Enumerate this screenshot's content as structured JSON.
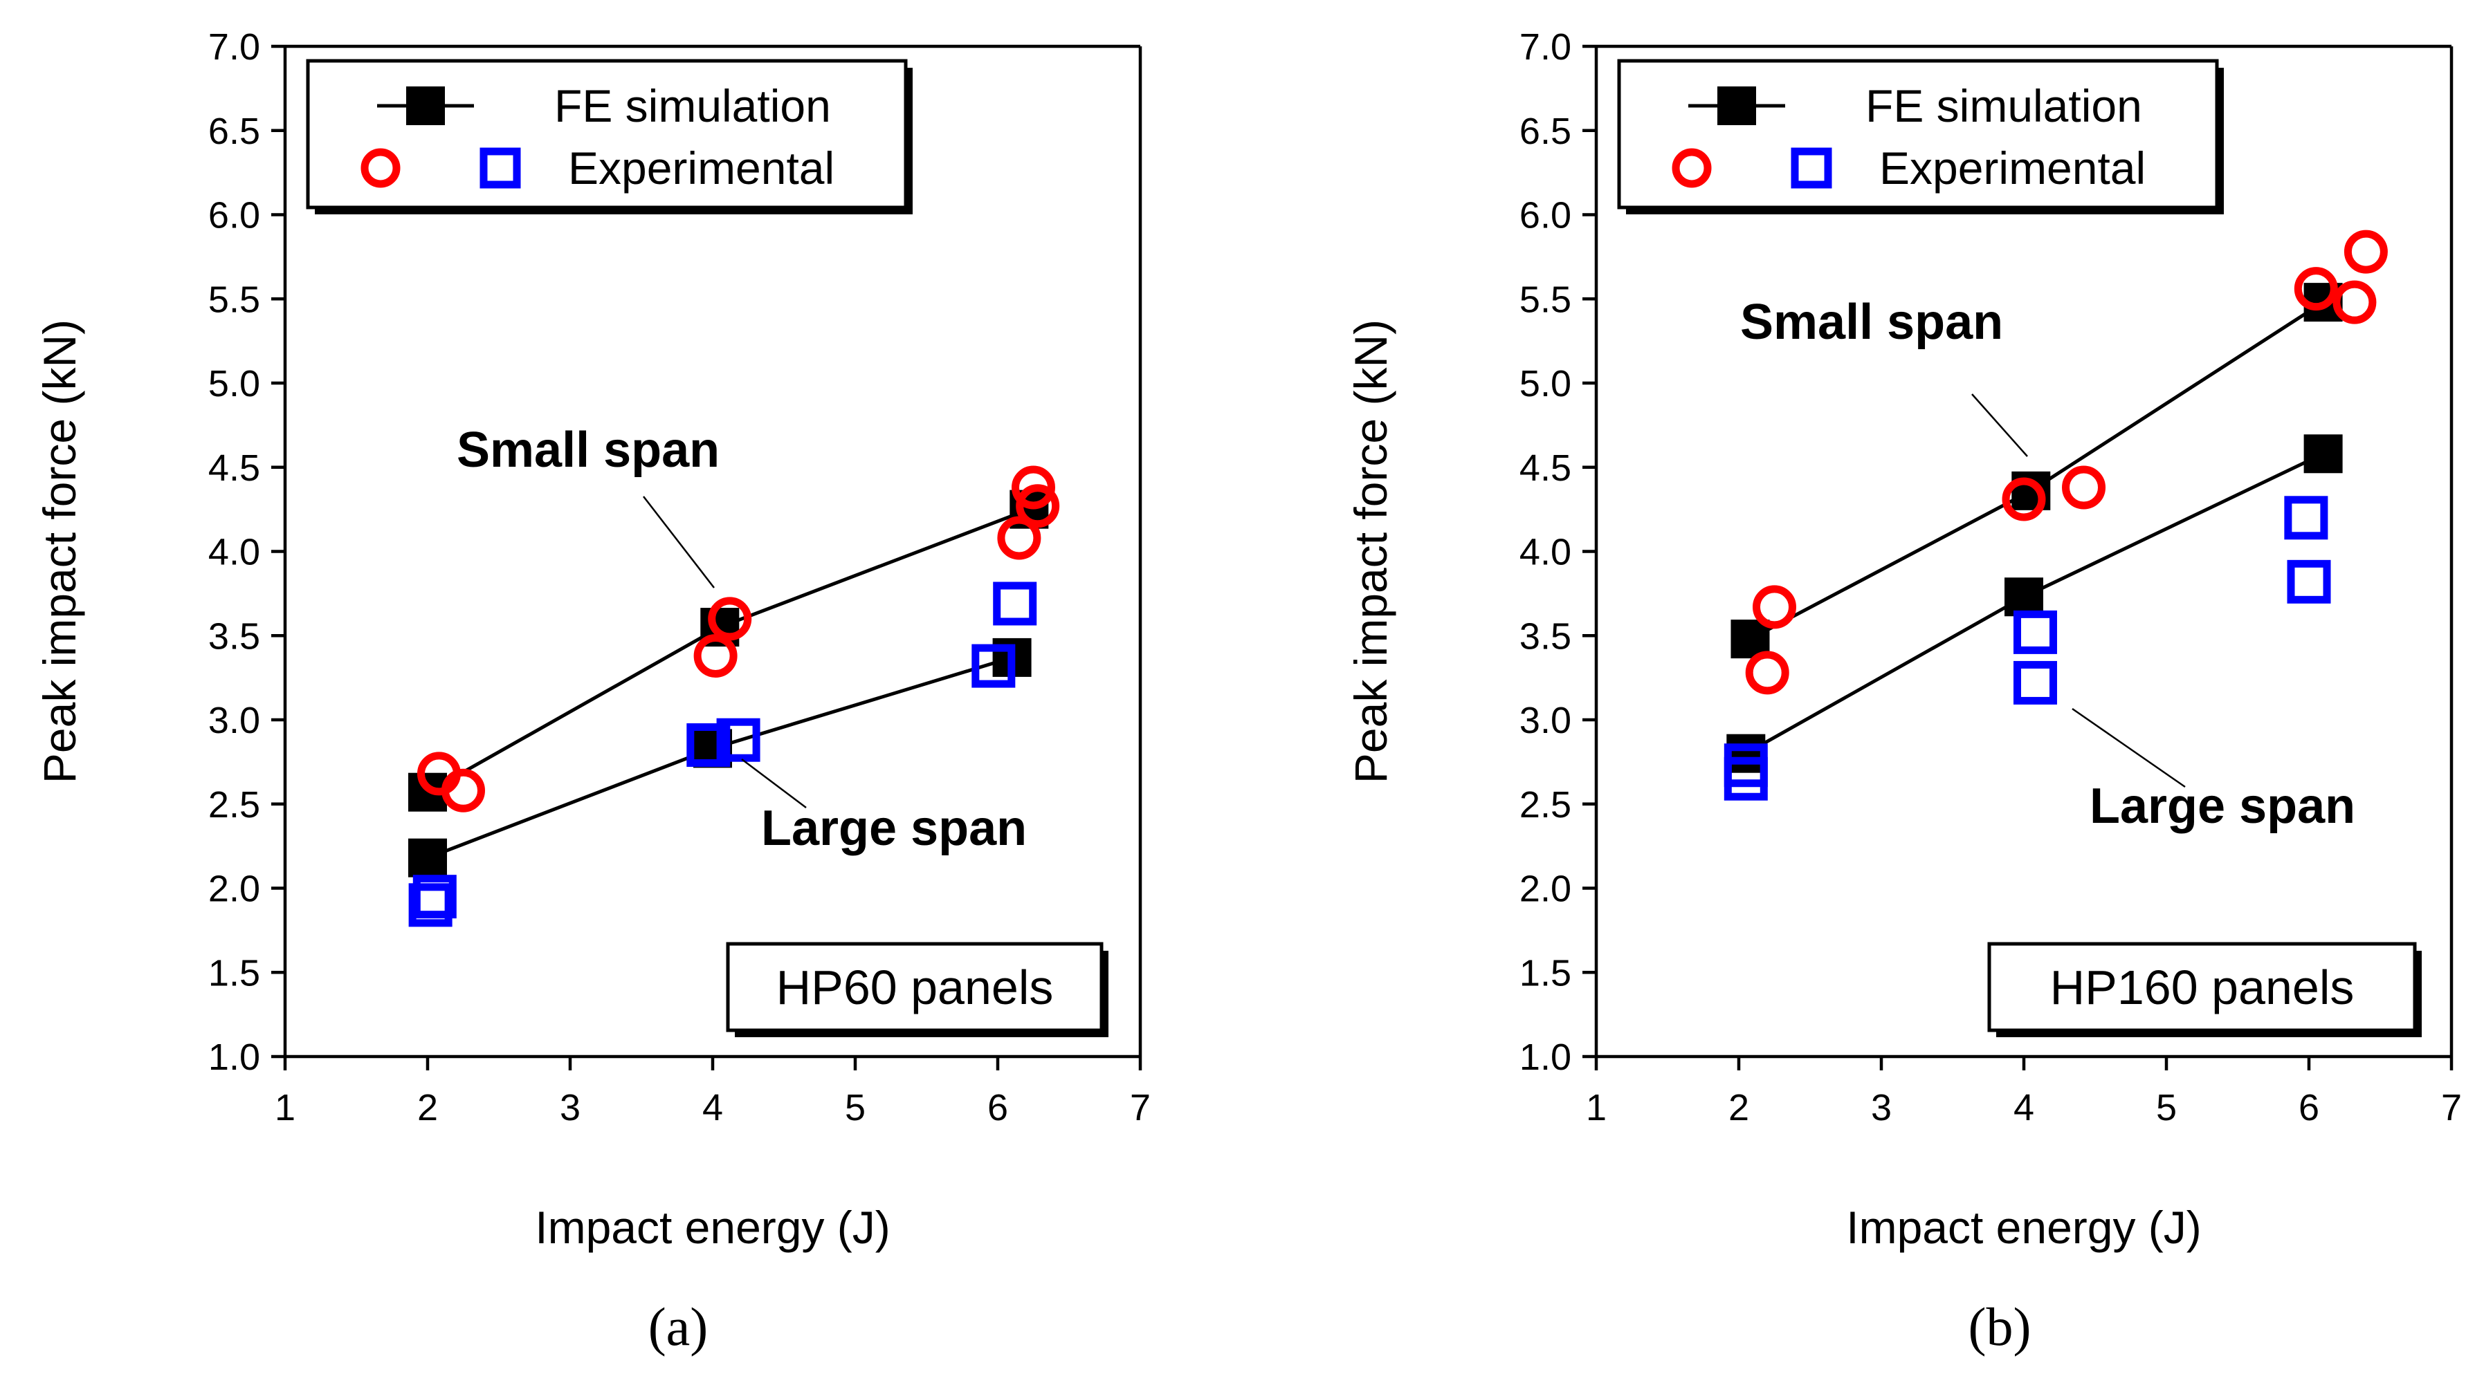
{
  "legend": {
    "fe_label": "FE simulation",
    "exp_label": "Experimental"
  },
  "colors": {
    "fe": "#000000",
    "small_span_exp": "#ff0000",
    "large_span_exp": "#0000ff"
  },
  "chart_data": [
    {
      "type": "scatter",
      "id": "a",
      "caption": "(a)",
      "panel_label": "HP60 panels",
      "xlabel": "Impact energy (J)",
      "ylabel": "Peak impact force (kN)",
      "xlim": [
        1,
        7
      ],
      "ylim": [
        1.0,
        7.0
      ],
      "xticks": [
        1,
        2,
        3,
        4,
        5,
        6,
        7
      ],
      "yticks": [
        "1.0",
        "1.5",
        "2.0",
        "2.5",
        "3.0",
        "3.5",
        "4.0",
        "4.5",
        "5.0",
        "5.5",
        "6.0",
        "6.5",
        "7.0"
      ],
      "series": [
        {
          "name": "FE simulation - Small span",
          "style": "fe",
          "x": [
            2.0,
            4.05,
            6.22
          ],
          "y": [
            2.57,
            3.55,
            4.25
          ]
        },
        {
          "name": "FE simulation - Large span",
          "style": "fe",
          "x": [
            2.0,
            4.0,
            6.1
          ],
          "y": [
            2.18,
            2.83,
            3.37
          ]
        },
        {
          "name": "Experimental - Small span",
          "style": "circle",
          "x": [
            2.08,
            2.25,
            4.12,
            4.02,
            6.25,
            6.15,
            6.28
          ],
          "y": [
            2.68,
            2.58,
            3.6,
            3.38,
            4.38,
            4.08,
            4.27
          ]
        },
        {
          "name": "Experimental - Large span",
          "style": "square",
          "x": [
            2.02,
            2.05,
            3.97,
            4.18,
            5.97,
            6.12
          ],
          "y": [
            1.9,
            1.95,
            2.85,
            2.88,
            3.32,
            3.69
          ]
        }
      ],
      "annotations": [
        {
          "text": "Small span",
          "series": "small"
        },
        {
          "text": "Large span",
          "series": "large"
        }
      ]
    },
    {
      "type": "scatter",
      "id": "b",
      "caption": "(b)",
      "panel_label": "HP160 panels",
      "xlabel": "Impact energy (J)",
      "ylabel": "Peak impact force (kN)",
      "xlim": [
        1,
        7
      ],
      "ylim": [
        1.0,
        7.0
      ],
      "xticks": [
        1,
        2,
        3,
        4,
        5,
        6,
        7
      ],
      "yticks": [
        "1.0",
        "1.5",
        "2.0",
        "2.5",
        "3.0",
        "3.5",
        "4.0",
        "4.5",
        "5.0",
        "5.5",
        "6.0",
        "6.5",
        "7.0"
      ],
      "series": [
        {
          "name": "FE simulation - Small span",
          "style": "fe",
          "x": [
            2.08,
            4.05,
            6.1
          ],
          "y": [
            3.48,
            4.36,
            5.48
          ]
        },
        {
          "name": "FE simulation - Large span",
          "style": "fe",
          "x": [
            2.05,
            4.0,
            6.1
          ],
          "y": [
            2.8,
            3.73,
            4.58
          ]
        },
        {
          "name": "Experimental - Small span",
          "style": "circle",
          "x": [
            2.25,
            2.2,
            4.0,
            4.42,
            6.05,
            6.4,
            6.32
          ],
          "y": [
            3.67,
            3.28,
            4.31,
            4.38,
            5.56,
            5.78,
            5.48
          ]
        },
        {
          "name": "Experimental - Large span",
          "style": "square",
          "x": [
            2.05,
            2.05,
            4.08,
            4.08,
            5.98,
            6.0
          ],
          "y": [
            2.65,
            2.73,
            3.52,
            3.22,
            4.2,
            3.82
          ]
        }
      ],
      "annotations": [
        {
          "text": "Small span",
          "series": "small"
        },
        {
          "text": "Large span",
          "series": "large"
        }
      ]
    }
  ]
}
